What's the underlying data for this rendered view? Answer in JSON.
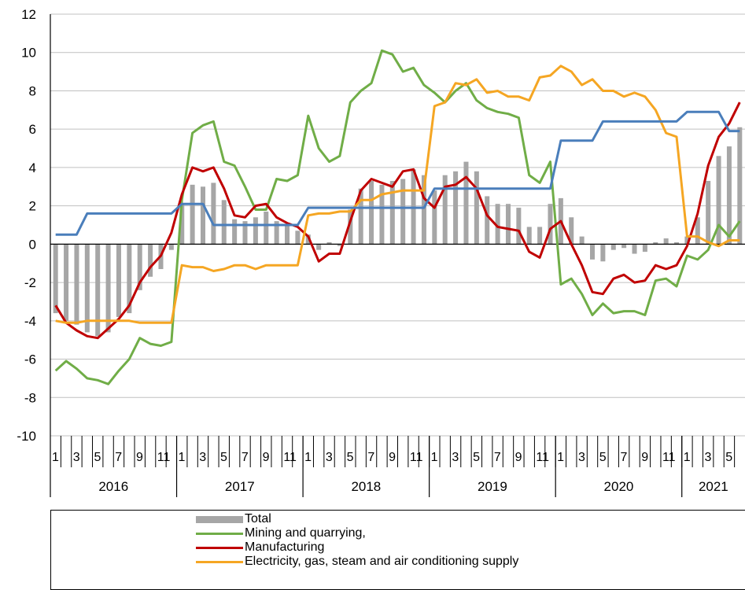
{
  "chart_data": {
    "type": "bar+line",
    "title": "",
    "xlabel": "",
    "ylabel": "",
    "ylim": [
      -10,
      12
    ],
    "yticks": [
      -10,
      -8,
      -6,
      -4,
      -2,
      0,
      2,
      4,
      6,
      8,
      10,
      12
    ],
    "grid": true,
    "years": [
      "2016",
      "2017",
      "2018",
      "2019",
      "2020",
      "2021"
    ],
    "month_tick_labels": [
      "1",
      "3",
      "5",
      "7",
      "9",
      "11"
    ],
    "x_months_count": 66,
    "legend_position": "bottom",
    "series": [
      {
        "name": "Total",
        "kind": "bar",
        "color": "#a6a6a6",
        "values": [
          -3.6,
          -4.0,
          -4.2,
          -4.6,
          -4.8,
          -4.6,
          -3.8,
          -3.6,
          -2.4,
          -1.7,
          -1.3,
          -0.3,
          2.1,
          3.1,
          3.0,
          3.2,
          2.3,
          1.3,
          1.2,
          1.4,
          1.7,
          1.2,
          1.0,
          0.7,
          0.5,
          -0.3,
          0.1,
          -0.1,
          1.8,
          2.9,
          3.3,
          3.1,
          3.3,
          3.4,
          3.9,
          3.6,
          2.8,
          3.6,
          3.8,
          4.3,
          3.8,
          2.5,
          2.1,
          2.1,
          1.9,
          0.9,
          0.9,
          2.1,
          2.4,
          1.4,
          0.4,
          -0.8,
          -0.9,
          -0.3,
          -0.2,
          -0.5,
          -0.4,
          0.1,
          0.3,
          0.1,
          0.4,
          1.4,
          3.3,
          4.6,
          5.1,
          6.1
        ]
      },
      {
        "name": "Mining and quarrying,",
        "kind": "line",
        "color": "#70ad47",
        "values": [
          -6.6,
          -6.1,
          -6.5,
          -7.0,
          -7.1,
          -7.3,
          -6.6,
          -6.0,
          -4.9,
          -5.2,
          -5.3,
          -5.1,
          2.3,
          5.8,
          6.2,
          6.4,
          4.3,
          4.1,
          3.0,
          1.8,
          1.8,
          3.4,
          3.3,
          3.6,
          6.7,
          5.0,
          4.3,
          4.6,
          7.4,
          8.0,
          8.4,
          10.1,
          9.9,
          9.0,
          9.2,
          8.3,
          7.9,
          7.4,
          8.0,
          8.4,
          7.5,
          7.1,
          6.9,
          6.8,
          6.6,
          3.6,
          3.2,
          4.3,
          -2.1,
          -1.8,
          -2.6,
          -3.7,
          -3.1,
          -3.6,
          -3.5,
          -3.5,
          -3.7,
          -1.9,
          -1.8,
          -2.2,
          -0.6,
          -0.8,
          -0.3,
          1.0,
          0.4,
          1.2
        ]
      },
      {
        "name": "Manufacturing",
        "kind": "line",
        "color": "#c00000",
        "values": [
          -3.2,
          -4.1,
          -4.5,
          -4.8,
          -4.9,
          -4.4,
          -3.9,
          -3.2,
          -2.0,
          -1.2,
          -0.6,
          0.6,
          2.6,
          4.0,
          3.8,
          4.0,
          2.9,
          1.5,
          1.4,
          2.0,
          2.1,
          1.4,
          1.1,
          0.9,
          0.4,
          -0.9,
          -0.5,
          -0.5,
          1.2,
          2.8,
          3.4,
          3.2,
          3.0,
          3.8,
          3.9,
          2.4,
          1.9,
          3.0,
          3.1,
          3.5,
          2.9,
          1.5,
          0.9,
          0.8,
          0.7,
          -0.4,
          -0.7,
          0.8,
          1.2,
          0.0,
          -1.1,
          -2.5,
          -2.6,
          -1.8,
          -1.6,
          -2.0,
          -1.9,
          -1.1,
          -1.3,
          -1.1,
          -0.1,
          1.6,
          4.1,
          5.6,
          6.3,
          7.4
        ]
      },
      {
        "name": "Electricity, gas, steam and air conditioning supply",
        "kind": "line",
        "color": "#f5a623",
        "values": [
          -4.0,
          -4.1,
          -4.1,
          -4.0,
          -4.0,
          -4.0,
          -4.0,
          -4.0,
          -4.1,
          -4.1,
          -4.1,
          -4.1,
          -1.1,
          -1.2,
          -1.2,
          -1.4,
          -1.3,
          -1.1,
          -1.1,
          -1.3,
          -1.1,
          -1.1,
          -1.1,
          -1.1,
          1.5,
          1.6,
          1.6,
          1.7,
          1.7,
          2.3,
          2.3,
          2.6,
          2.7,
          2.8,
          2.8,
          2.8,
          7.2,
          7.4,
          8.4,
          8.3,
          8.6,
          7.9,
          8.0,
          7.7,
          7.7,
          7.5,
          8.7,
          8.8,
          9.3,
          9.0,
          8.3,
          8.6,
          8.0,
          8.0,
          7.7,
          7.9,
          7.7,
          7.0,
          5.8,
          5.6,
          0.4,
          0.4,
          0.1,
          -0.1,
          0.2,
          0.2
        ]
      },
      {
        "name": "",
        "kind": "line",
        "color": "#4a7ebb",
        "values": [
          0.5,
          0.5,
          0.5,
          1.6,
          1.6,
          1.6,
          1.6,
          1.6,
          1.6,
          1.6,
          1.6,
          1.6,
          2.1,
          2.1,
          2.1,
          1.0,
          1.0,
          1.0,
          1.0,
          1.0,
          1.0,
          1.0,
          1.0,
          1.0,
          1.9,
          1.9,
          1.9,
          1.9,
          1.9,
          1.9,
          1.9,
          1.9,
          1.9,
          1.9,
          1.9,
          1.9,
          2.9,
          2.9,
          2.9,
          2.9,
          2.9,
          2.9,
          2.9,
          2.9,
          2.9,
          2.9,
          2.9,
          2.9,
          5.4,
          5.4,
          5.4,
          5.4,
          6.4,
          6.4,
          6.4,
          6.4,
          6.4,
          6.4,
          6.4,
          6.4,
          6.9,
          6.9,
          6.9,
          6.9,
          5.9,
          5.9
        ]
      }
    ]
  },
  "legend": {
    "items": [
      {
        "label": "Total",
        "color": "#a6a6a6",
        "style": "bar"
      },
      {
        "label": "Mining and quarrying,",
        "color": "#70ad47",
        "style": "line"
      },
      {
        "label": "Manufacturing",
        "color": "#c00000",
        "style": "line"
      },
      {
        "label": "Electricity, gas, steam and air conditioning supply",
        "color": "#f5a623",
        "style": "line"
      }
    ]
  }
}
